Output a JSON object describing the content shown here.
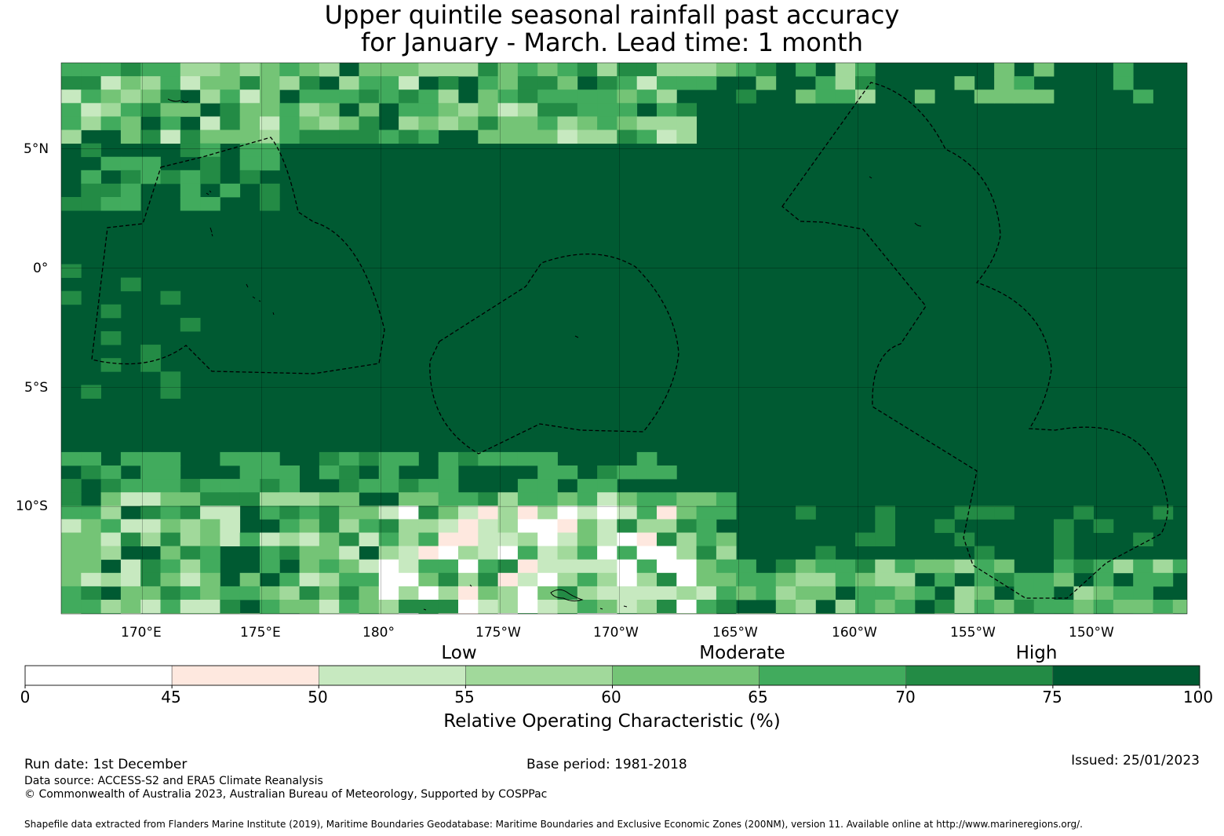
{
  "title": {
    "line1": "Upper quintile seasonal rainfall past accuracy",
    "line2": "for January - March. Lead time: 1 month"
  },
  "map": {
    "lat_labels": [
      "5°N",
      "0°",
      "5°S",
      "10°S"
    ],
    "lat_values": [
      5,
      0,
      -5,
      -10
    ],
    "lon_labels": [
      "170°E",
      "175°E",
      "180°",
      "175°W",
      "170°W",
      "165°W",
      "160°W",
      "155°W",
      "150°W"
    ],
    "lon_values": [
      170,
      175,
      180,
      185,
      190,
      195,
      200,
      205,
      210
    ],
    "lon_range": [
      166.6,
      213.8
    ],
    "lat_range": [
      -14.5,
      8.6
    ]
  },
  "legend": {
    "categories": [
      "Low",
      "Moderate",
      "High"
    ],
    "ticks": [
      "0",
      "45",
      "50",
      "55",
      "60",
      "65",
      "70",
      "75",
      "100"
    ],
    "colors": [
      "#ffffff",
      "#fee8df",
      "#c7e9c0",
      "#a1d99b",
      "#74c476",
      "#41ab5d",
      "#238b45",
      "#005a32"
    ],
    "title": "Relative Operating Characteristic (%)"
  },
  "footer": {
    "run_date": "Run date: 1st December",
    "base_period": "Base period: 1981-2018",
    "issued": "Issued: 25/01/2023",
    "data_source": "Data source: ACCESS-S2 and ERA5 Climate Reanalysis",
    "copyright": "© Commonwealth of Australia 2023, Australian Bureau of Meteorology, Supported by COSPPac",
    "shapefile": "Shapefile data extracted from Flanders Marine Institute (2019), Maritime Boundaries Geodatabase: Maritime Boundaries and Exclusive Economic Zones (200NM), version 11. Available online at http://www.marineregions.org/."
  }
}
